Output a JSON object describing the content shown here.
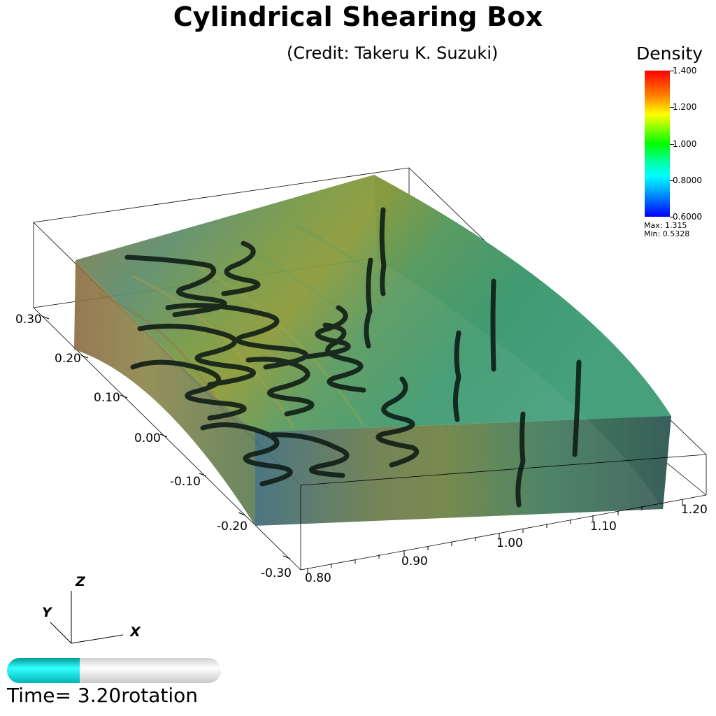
{
  "title": "Cylindrical Shearing Box",
  "credit": "(Credit: Takeru K. Suzuki)",
  "colorbar": {
    "title": "Density",
    "ticks": [
      "1.400",
      "1.200",
      "1.000",
      "0.8000",
      "0.6000"
    ],
    "tick_values": [
      1.4,
      1.2,
      1.0,
      0.8,
      0.6
    ],
    "range": [
      0.6,
      1.4
    ],
    "max_label": "Max:  1.315",
    "min_label": "Min:  0.5328"
  },
  "x_axis": {
    "ticks": [
      "0.80",
      "0.90",
      "1.00",
      "1.10",
      "1.20"
    ]
  },
  "z_axis": {
    "ticks": [
      "0.30",
      "0.20",
      "0.10",
      "0.00",
      "-0.10",
      "-0.20",
      "-0.30"
    ]
  },
  "orientation_axes": {
    "x": "X",
    "y": "Y",
    "z": "Z"
  },
  "time": {
    "label": "Time=  3.20rotation",
    "progress_fraction": 0.34
  },
  "colors": {
    "cyan_progress": "#00ffff",
    "box_top": "#3f9a6f",
    "box_outer": "#4a9a80"
  }
}
